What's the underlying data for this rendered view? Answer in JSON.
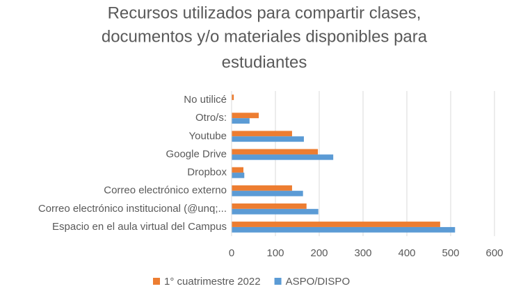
{
  "chart_data": {
    "type": "hbar",
    "title": [
      "Recursos utilizados para compartir clases,",
      "documentos y/o materiales disponibles para",
      "estudiantes"
    ],
    "categories": [
      "No utilicé",
      "Otro/s:",
      "Youtube",
      "Google Drive",
      "Dropbox",
      "Correo electrónico externo",
      "Correo electrónico institucional  (@unq;...",
      "Espacio en el aula virtual del Campus"
    ],
    "series": [
      {
        "name": "1° cuatrimestre 2022",
        "color": "#ed7d31",
        "values": [
          5,
          62,
          138,
          197,
          27,
          138,
          171,
          476
        ]
      },
      {
        "name": "ASPO/DISPO",
        "color": "#5b9bd5",
        "values": [
          0,
          41,
          165,
          232,
          29,
          163,
          198,
          510
        ]
      }
    ],
    "xlim": [
      0,
      600
    ],
    "xticks": [
      0,
      100,
      200,
      300,
      400,
      500,
      600
    ],
    "grid": true,
    "legend": "bottom"
  }
}
